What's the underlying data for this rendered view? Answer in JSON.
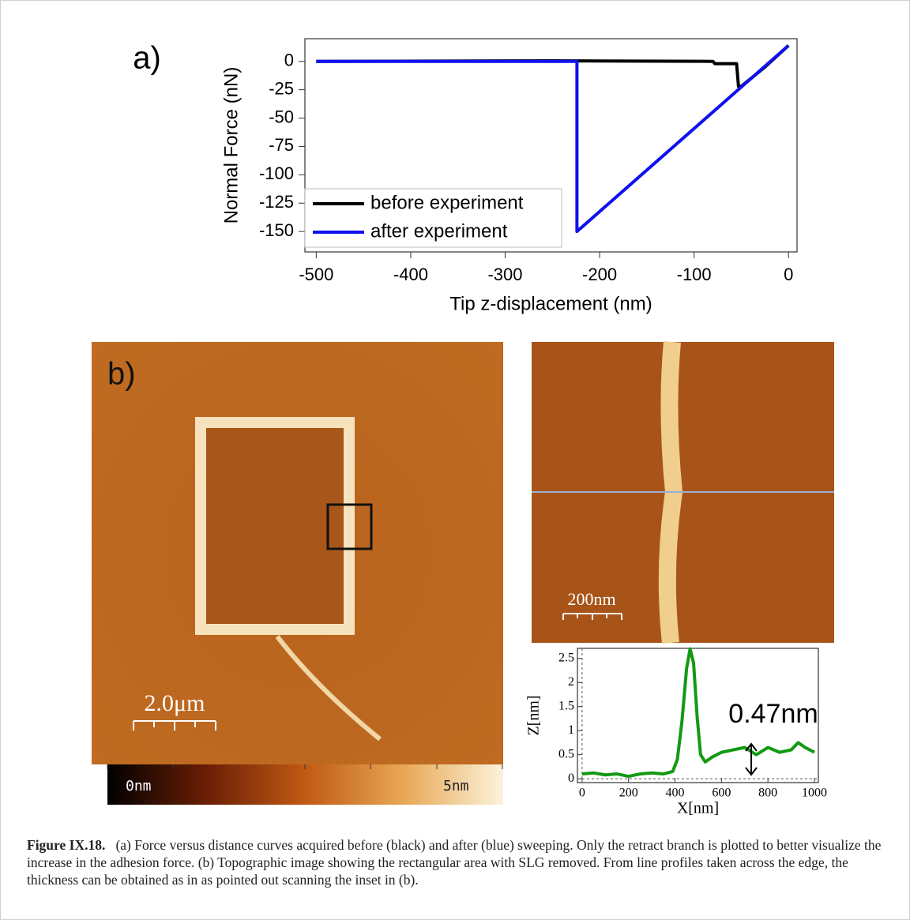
{
  "chart_data": [
    {
      "type": "line",
      "title": "a)",
      "ylabel": "Normal Force (nN)",
      "xlabel": "Tip z-displacement (nm)",
      "xlim": [
        -512,
        9
      ],
      "ylim": [
        -168,
        20
      ],
      "xticks": [
        -500,
        -400,
        -300,
        -200,
        -100,
        0
      ],
      "yticks": [
        0,
        -25,
        -50,
        -75,
        -100,
        -125,
        -150
      ],
      "grid": false,
      "legend": "lower left",
      "series": [
        {
          "name": "before experiment",
          "color": "#000000",
          "x": [
            -500,
            -250,
            -80,
            -78,
            -55,
            -53,
            -50,
            -25,
            0
          ],
          "values": [
            0,
            0.5,
            0,
            -2,
            -2,
            -22,
            -22,
            -5,
            14
          ]
        },
        {
          "name": "after experiment",
          "color": "#1010ee",
          "x": [
            -500,
            -224,
            -224,
            0
          ],
          "values": [
            0,
            0,
            -150,
            14
          ]
        }
      ]
    },
    {
      "type": "line",
      "xlabel": "X[nm]",
      "ylabel": "Z[nm]",
      "annotation": "0.47nm",
      "xlim": [
        -20,
        1017
      ],
      "ylim": [
        -0.08,
        2.71
      ],
      "xticks": [
        0,
        200,
        400,
        600,
        800,
        1000
      ],
      "yticks": [
        0,
        0.5,
        1,
        1.5,
        2,
        2.5
      ],
      "grid": false,
      "x": [
        0,
        50,
        100,
        150,
        200,
        250,
        300,
        350,
        390,
        410,
        430,
        450,
        465,
        480,
        495,
        510,
        530,
        560,
        600,
        650,
        700,
        750,
        800,
        850,
        900,
        930,
        960,
        1000
      ],
      "series": [
        {
          "color": "#139913",
          "values": [
            0.1,
            0.12,
            0.08,
            0.1,
            0.05,
            0.1,
            0.12,
            0.1,
            0.15,
            0.4,
            1.2,
            2.3,
            2.7,
            2.4,
            1.3,
            0.5,
            0.35,
            0.45,
            0.55,
            0.6,
            0.65,
            0.5,
            0.65,
            0.55,
            0.6,
            0.75,
            0.65,
            0.55
          ]
        }
      ]
    }
  ],
  "panel_b": {
    "label": "b)",
    "scale_bar": "2.0μm",
    "inset_scale_bar": "200nm",
    "colorbar_min": "0nm",
    "colorbar_max": "5nm"
  },
  "caption": {
    "label": "Figure IX.18.",
    "text": "(a) Force versus distance curves acquired before (black) and after (blue) sweeping. Only the retract branch is plotted to better visualize the increase in the adhesion force. (b) Topographic image showing the rectangular area with SLG removed. From line profiles taken across the edge, the thickness can be obtained as in as pointed out scanning the inset in (b)."
  }
}
